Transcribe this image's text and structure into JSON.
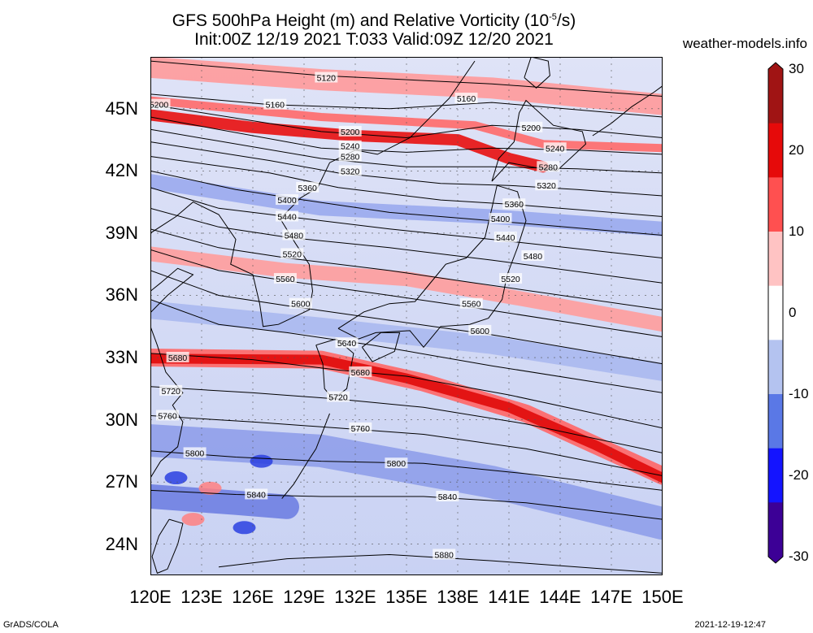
{
  "header": {
    "title_prefix": "GFS 500hPa Height (m) and Relative Vorticity (10",
    "title_exponent": "-5",
    "title_suffix": "/s)",
    "subtitle": "Init:00Z 12/19 2021 T:033 Valid:09Z 12/20 2021",
    "site": "weather-models.info"
  },
  "map": {
    "lat_ticks": [
      "45N",
      "42N",
      "39N",
      "36N",
      "33N",
      "30N",
      "27N",
      "24N"
    ],
    "lon_ticks": [
      "120E",
      "123E",
      "126E",
      "129E",
      "132E",
      "135E",
      "138E",
      "141E",
      "144E",
      "147E",
      "150E"
    ],
    "lon_range": [
      120,
      150
    ],
    "lat_range": [
      22.5,
      47.5
    ],
    "contour_labels": [
      "5120",
      "5160",
      "5200",
      "5240",
      "5280",
      "5320",
      "5360",
      "5400",
      "5440",
      "5480",
      "5520",
      "5560",
      "5600",
      "5640",
      "5680",
      "5720",
      "5760",
      "5800",
      "5840",
      "5880"
    ]
  },
  "colorbar": {
    "ticks": [
      "30",
      "20",
      "10",
      "0",
      "-10",
      "-20",
      "-30"
    ],
    "colors": [
      "#3c0096",
      "#1414ff",
      "#5a78e6",
      "#b4c3f0",
      "#ffffff",
      "#ffc3c3",
      "#ff5050",
      "#e60a0a",
      "#a01414"
    ]
  },
  "footer": {
    "left": "GrADS/COLA",
    "right": "2021-12-19-12:47"
  }
}
